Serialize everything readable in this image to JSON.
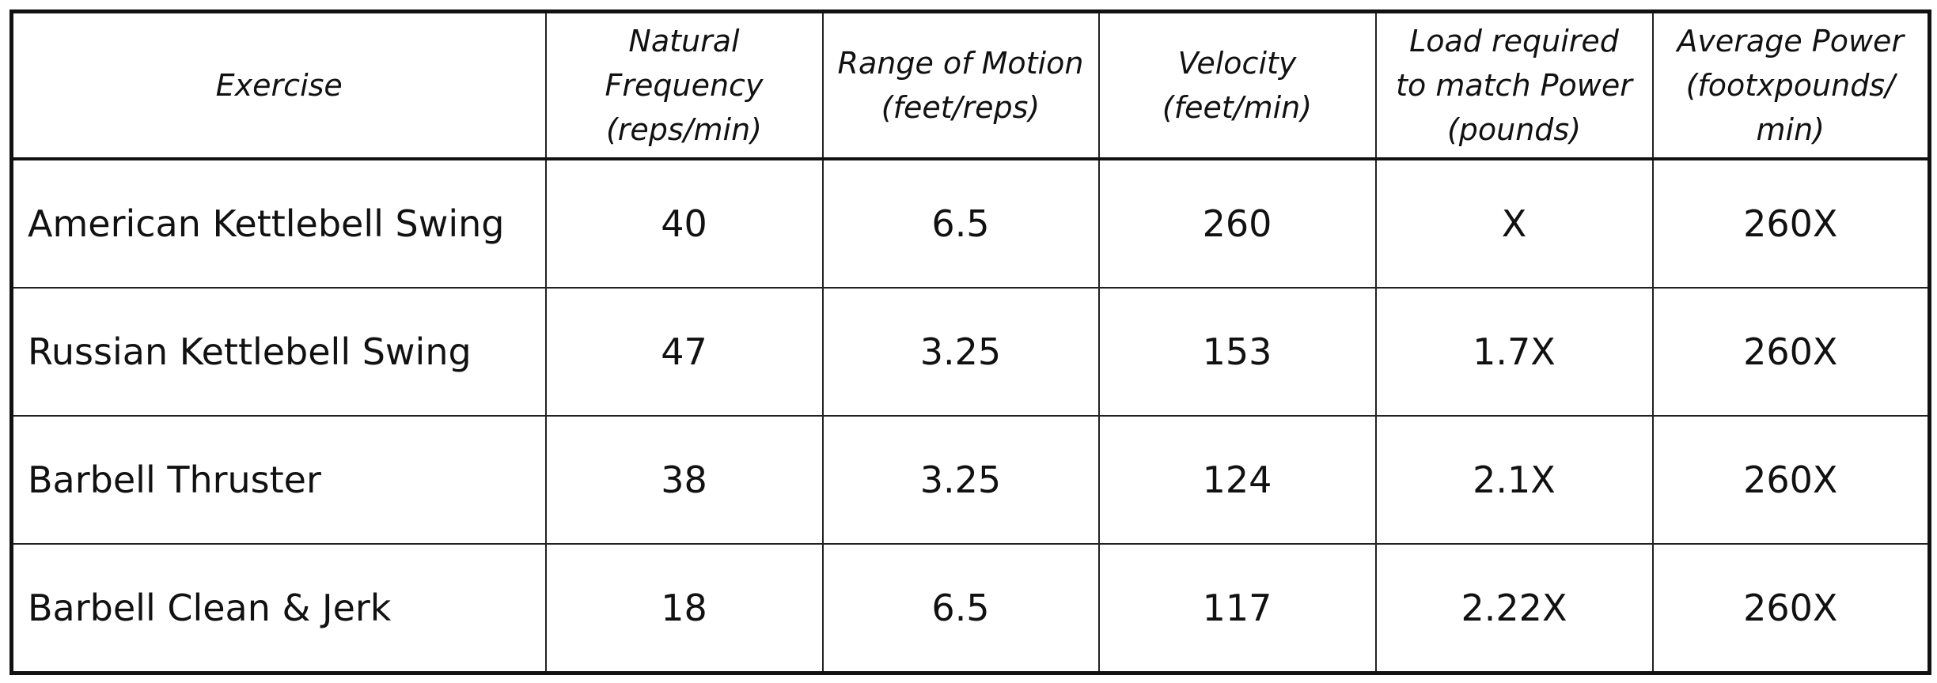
{
  "table": {
    "header": [
      [
        "Exercise"
      ],
      [
        "Natural",
        "Frequency",
        "(reps/min)"
      ],
      [
        "Range of Motion",
        "(feet/reps)"
      ],
      [
        "Velocity",
        "(feet/min)"
      ],
      [
        "Load required",
        "to match Power",
        "(pounds)"
      ],
      [
        "Average Power",
        "(footxpounds/",
        "min)"
      ]
    ],
    "rows": [
      [
        "American Kettlebell Swing",
        "40",
        "6.5",
        "260",
        "X",
        "260X"
      ],
      [
        "Russian Kettlebell Swing",
        "47",
        "3.25",
        "153",
        "1.7X",
        "260X"
      ],
      [
        "Barbell Thruster",
        "38",
        "3.25",
        "124",
        "2.1X",
        "260X"
      ],
      [
        "Barbell Clean & Jerk",
        "18",
        "6.5",
        "117",
        "2.22X",
        "260X"
      ]
    ]
  }
}
